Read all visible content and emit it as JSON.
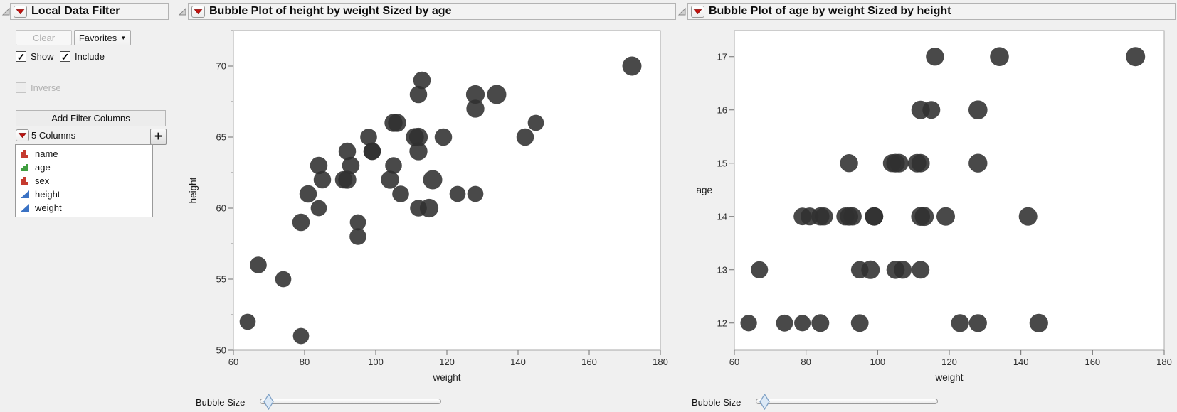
{
  "ui": {
    "bubble_size_label": "Bubble Size",
    "colors": {
      "background": "#f0f0f0",
      "header_bar": "#f3f3f3",
      "red_triangle": "#c3120f",
      "bubble": "#303030",
      "nominal_icon_red": "#c53a2f",
      "ordinal_icon_green": "#3f9e3f",
      "continuous_icon_blue": "#3a72c4",
      "slider_thumb_blue": "#dce9f6"
    }
  },
  "icons": {
    "red_triangle_menu": "▼",
    "disclosure_open": "◿",
    "favorites_caret": "▼",
    "add_column": "+"
  },
  "filter_panel": {
    "title": "Local Data Filter",
    "clear": {
      "label": "Clear",
      "enabled": false
    },
    "favorites": {
      "label": "Favorites",
      "enabled": true
    },
    "show": {
      "label": "Show",
      "checked": true,
      "glyph": "✓"
    },
    "include": {
      "label": "Include",
      "checked": true,
      "glyph": "✓"
    },
    "inverse": {
      "label": "Inverse",
      "checked": false,
      "glyph": ""
    },
    "add_button": "Add Filter Columns",
    "columns_label": "5 Columns",
    "columns": {
      "items": [
        {
          "label": "name",
          "type": "nominal"
        },
        {
          "label": "age",
          "type": "ordinal"
        },
        {
          "label": "sex",
          "type": "nominal"
        },
        {
          "label": "height",
          "type": "continuous"
        },
        {
          "label": "weight",
          "type": "continuous"
        }
      ]
    }
  },
  "chart_data": [
    {
      "type": "scatter",
      "title": "Bubble Plot of height by weight Sized by age",
      "xlabel": "weight",
      "ylabel": "height",
      "ylabel_rotated": true,
      "xlim": [
        60,
        180
      ],
      "ylim": [
        50,
        72.5
      ],
      "xticks": [
        60,
        80,
        100,
        120,
        140,
        160,
        180
      ],
      "yticks": [
        50,
        55,
        60,
        65,
        70
      ],
      "yminorticks": [
        52.5,
        57.5,
        62.5,
        67.5,
        72.5
      ],
      "grid": false,
      "legend": "none",
      "bubble": {
        "color": "#303030",
        "opacity": 0.88,
        "size_field": "age",
        "size_max": 17,
        "base_radius_px": 13.5
      },
      "x": [
        95,
        123,
        74,
        145,
        64,
        84,
        128,
        79,
        112,
        107,
        67,
        98,
        105,
        95,
        79,
        81,
        91,
        142,
        84,
        85,
        93,
        99,
        119,
        92,
        112,
        99,
        113,
        92,
        112,
        128,
        111,
        105,
        104,
        106,
        112,
        115,
        128,
        116,
        134,
        172
      ],
      "y": [
        59,
        61,
        55,
        66,
        52,
        60,
        61,
        51,
        60,
        61,
        56,
        65,
        63,
        58,
        59,
        61,
        62,
        65,
        63,
        62,
        63,
        64,
        65,
        64,
        68,
        64,
        69,
        62,
        64,
        67,
        65,
        66,
        62,
        66,
        65,
        60,
        68,
        62,
        68,
        70
      ],
      "size": [
        12,
        12,
        12,
        12,
        12,
        12,
        12,
        12,
        13,
        13,
        13,
        13,
        13,
        13,
        14,
        14,
        14,
        14,
        14,
        14,
        14,
        14,
        14,
        14,
        14,
        14,
        14,
        15,
        15,
        15,
        15,
        15,
        15,
        15,
        16,
        16,
        16,
        17,
        17,
        17
      ]
    },
    {
      "type": "scatter",
      "title": "Bubble Plot of age by weight Sized by height",
      "xlabel": "weight",
      "ylabel": "age",
      "ylabel_rotated": false,
      "xlim": [
        60,
        180
      ],
      "ylim": [
        11.49,
        17.49
      ],
      "xticks": [
        60,
        80,
        100,
        120,
        140,
        160,
        180
      ],
      "yticks": [
        12,
        13,
        14,
        15,
        16,
        17
      ],
      "yminorticks": [],
      "grid": false,
      "legend": "none",
      "bubble": {
        "color": "#303030",
        "opacity": 0.88,
        "size_field": "height",
        "size_max": 70,
        "base_radius_px": 13.5
      },
      "x": [
        95,
        123,
        74,
        145,
        64,
        84,
        128,
        79,
        112,
        107,
        67,
        98,
        105,
        95,
        79,
        81,
        91,
        142,
        84,
        85,
        93,
        99,
        119,
        92,
        112,
        99,
        113,
        92,
        112,
        128,
        111,
        105,
        104,
        106,
        112,
        115,
        128,
        116,
        134,
        172
      ],
      "y": [
        12,
        12,
        12,
        12,
        12,
        12,
        12,
        12,
        13,
        13,
        13,
        13,
        13,
        13,
        14,
        14,
        14,
        14,
        14,
        14,
        14,
        14,
        14,
        14,
        14,
        14,
        14,
        15,
        15,
        15,
        15,
        15,
        15,
        15,
        16,
        16,
        16,
        17,
        17,
        17
      ],
      "size": [
        59,
        61,
        55,
        66,
        52,
        60,
        61,
        51,
        60,
        61,
        56,
        65,
        63,
        58,
        59,
        61,
        62,
        65,
        63,
        62,
        63,
        64,
        65,
        64,
        68,
        64,
        69,
        62,
        64,
        67,
        65,
        66,
        62,
        66,
        65,
        60,
        68,
        62,
        68,
        70
      ]
    }
  ]
}
